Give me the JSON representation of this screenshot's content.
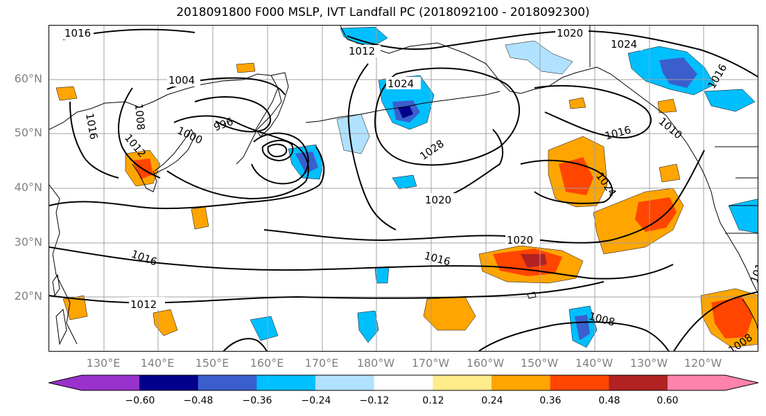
{
  "title": "2018091800 F000 MSLP, IVT Landfall PC (2018092100 - 2018092300)",
  "lat_labels": [
    "60°N",
    "50°N",
    "40°N",
    "30°N",
    "20°N"
  ],
  "lon_labels": [
    "130°E",
    "140°E",
    "150°E",
    "160°E",
    "170°E",
    "180°W",
    "170°W",
    "160°W",
    "150°W",
    "140°W",
    "130°W",
    "120°W"
  ],
  "colorbar": {
    "ticks": [
      "−0.60",
      "−0.48",
      "−0.36",
      "−0.24",
      "−0.12",
      "0.12",
      "0.24",
      "0.36",
      "0.48",
      "0.60"
    ],
    "colors": [
      "#9932cc",
      "#00008b",
      "#3a5fcd",
      "#00bfff",
      "#b0e2ff",
      "#ffffff",
      "#ffec8b",
      "#ffa500",
      "#ff4500",
      "#b22222",
      "#ff82ab"
    ]
  },
  "contour_labels": [
    "1016",
    "1012",
    "1020",
    "1024",
    "1016",
    "1004",
    "1008",
    "1016",
    "996",
    "1000",
    "1012",
    "1024",
    "1028",
    "1016",
    "1010",
    "1024",
    "1020",
    "1020",
    "1016",
    "1016",
    "1012",
    "1008",
    "1008",
    "1016"
  ],
  "colors": {
    "grid": "#a0a0a0",
    "contour": "#000000",
    "coast": "#000000"
  }
}
